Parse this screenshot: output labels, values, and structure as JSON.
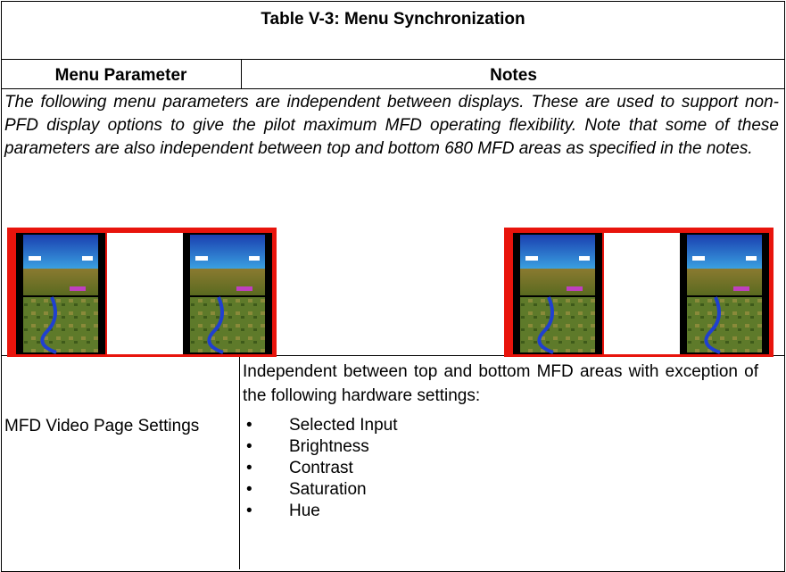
{
  "table": {
    "title": "Table V-3: Menu Synchronization",
    "headers": [
      "Menu Parameter",
      "Notes"
    ],
    "description": "The following menu parameters are independent between displays. These are used to support non-PFD display options to give the pilot maximum MFD operating flexibility. Note that some of these parameters are also independent between top and bottom 680 MFD areas as specified in the notes.",
    "rows": [
      {
        "parameter": "MFD Video Page Settings",
        "notes": "Independent between top and bottom MFD areas with exception of the following hardware settings:",
        "items": [
          "Selected Input",
          "Brightness",
          "Contrast",
          "Saturation",
          "Hue"
        ]
      }
    ]
  }
}
